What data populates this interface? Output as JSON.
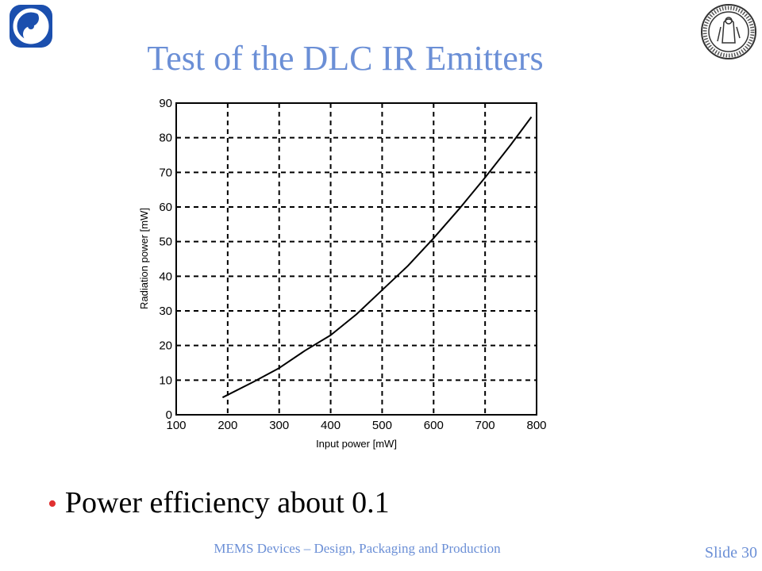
{
  "slide": {
    "title": "Test of the DLC IR Emitters",
    "bullet": "Power efficiency about 0.1",
    "footer": "MEMS Devices – Design, Packaging and Production",
    "slide_number": "Slide 30",
    "title_color": "#6b8fd6",
    "bullet_color": "#e03030",
    "logos": {
      "left": "university-symbol-icon",
      "right": "university-of-oslo-seal-icon"
    }
  },
  "chart_data": {
    "type": "line",
    "xlabel": "Input power [mW]",
    "ylabel": "Radiation power [mW]",
    "xlim": [
      100,
      800
    ],
    "ylim": [
      0,
      90
    ],
    "xticks": [
      100,
      200,
      300,
      400,
      500,
      600,
      700,
      800
    ],
    "yticks": [
      0,
      10,
      20,
      30,
      40,
      50,
      60,
      70,
      80,
      90
    ],
    "grid": true,
    "grid_style": "dashed",
    "line_color": "#000000",
    "series": [
      {
        "x": [
          190,
          250,
          300,
          350,
          400,
          450,
          500,
          550,
          600,
          650,
          700,
          750,
          790
        ],
        "y": [
          5,
          9.5,
          13.5,
          18.5,
          23,
          29,
          36,
          43,
          51,
          59.5,
          68.5,
          78,
          86
        ]
      }
    ]
  }
}
